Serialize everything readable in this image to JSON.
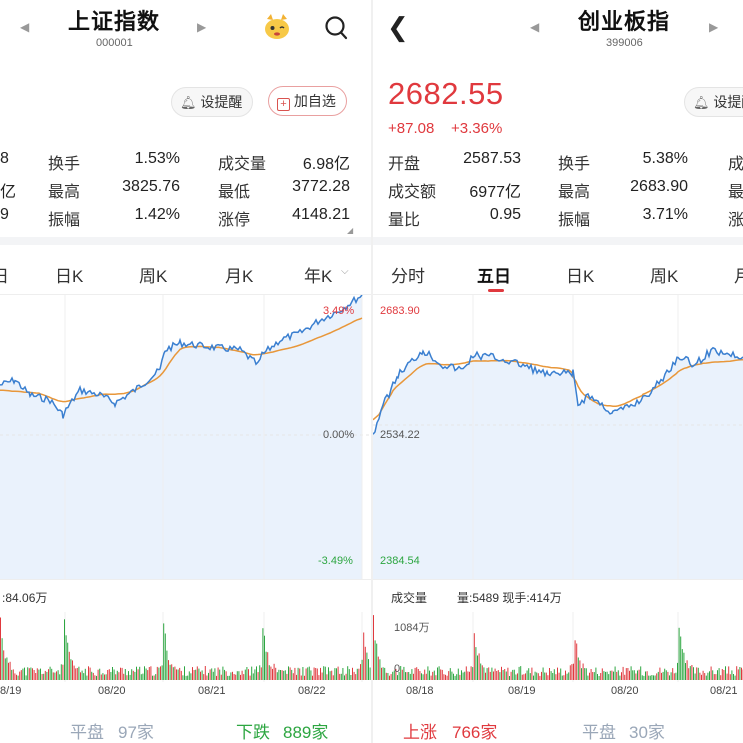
{
  "left": {
    "title": "上证指数",
    "code": "000001",
    "remind_label": "设提醒",
    "add_label": "加自选",
    "stats": {
      "row1": {
        "c0_val": "8",
        "c1_lab": "换手",
        "c1_val": "1.53%",
        "c2_lab": "成交量",
        "c2_val": "6.98亿"
      },
      "row2": {
        "c0_val": "亿",
        "c1_lab": "最高",
        "c1_val": "3825.76",
        "c2_lab": "最低",
        "c2_val": "3772.28"
      },
      "row3": {
        "c0_val": "9",
        "c1_lab": "振幅",
        "c1_val": "1.42%",
        "c2_lab": "涨停",
        "c2_val": "4148.21"
      }
    },
    "tabs": [
      "日K",
      "周K",
      "月K",
      "年K"
    ],
    "tab_partial": "日",
    "chart_labels": {
      "top_pct": "3.49%",
      "mid_pct": "0.00%",
      "bot_pct": "-3.49%"
    },
    "volume_label": ":84.06万",
    "dates": [
      "8/19",
      "08/20",
      "08/21",
      "08/22"
    ],
    "bottom": {
      "flat_label": "平盘",
      "flat_count": "97家",
      "down_label": "下跌",
      "down_count": "889家"
    }
  },
  "right": {
    "title": "创业板指",
    "code": "399006",
    "price": "2682.55",
    "change": "+87.08",
    "change_pct": "+3.36%",
    "remind_label": "设提醒",
    "stats": {
      "row1": {
        "c0_lab": "开盘",
        "c0_val": "2587.53",
        "c1_lab": "换手",
        "c1_val": "5.38%",
        "c2_lab": "成"
      },
      "row2": {
        "c0_lab": "成交额",
        "c0_val": "6977亿",
        "c1_lab": "最高",
        "c1_val": "2683.90",
        "c2_lab": "最"
      },
      "row3": {
        "c0_lab": "量比",
        "c0_val": "0.95",
        "c1_lab": "振幅",
        "c1_val": "3.71%",
        "c2_lab": "涨"
      }
    },
    "tabs": [
      "分时",
      "五日",
      "日K",
      "周K",
      "月"
    ],
    "active_tab": "五日",
    "chart_labels": {
      "high": "2683.90",
      "mid": "2534.22",
      "low": "2384.54"
    },
    "volume_title": "成交量",
    "volume_stats": "量:5489 现手:414万",
    "volume_max": "1084万",
    "volume_zero": "0",
    "dates": [
      "08/18",
      "08/19",
      "08/20",
      "08/21"
    ],
    "bottom": {
      "up_label": "上涨",
      "up_count": "766家",
      "flat_label": "平盘",
      "flat_count": "30家"
    }
  },
  "colors": {
    "up": "#e0393e",
    "down": "#2da641",
    "price_line": "#3a7fd0",
    "avg_line": "#e8973a"
  }
}
